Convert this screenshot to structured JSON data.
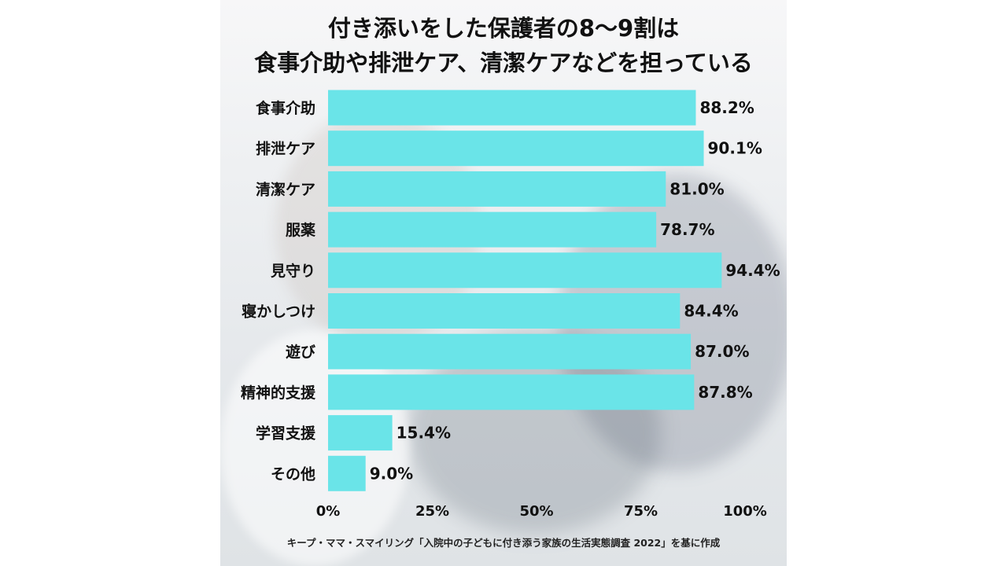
{
  "title": {
    "line1": "付き添いをした保護者の8〜9割は",
    "line2": "食事介助や排泄ケア、清潔ケアなどを担っている"
  },
  "source": "キープ・ママ・スマイリング「入院中の子どもに付き添う家族の生活実態調査 2022」を基に作成",
  "colors": {
    "bar": "#6ae4e8",
    "text": "#111111"
  },
  "chart_data": {
    "type": "bar",
    "orientation": "horizontal",
    "categories": [
      "食事介助",
      "排泄ケア",
      "清潔ケア",
      "服薬",
      "見守り",
      "寝かしつけ",
      "遊び",
      "精神的支援",
      "学習支援",
      "その他"
    ],
    "values": [
      88.2,
      90.1,
      81.0,
      78.7,
      94.4,
      84.4,
      87.0,
      87.8,
      15.4,
      9.0
    ],
    "value_labels": [
      "88.2%",
      "90.1%",
      "81.0%",
      "78.7%",
      "94.4%",
      "84.4%",
      "87.0%",
      "87.8%",
      "15.4%",
      "9.0%"
    ],
    "x_ticks": [
      0,
      25,
      50,
      75,
      100
    ],
    "x_tick_labels": [
      "0%",
      "25%",
      "50%",
      "75%",
      "100%"
    ],
    "xlim": [
      0,
      100
    ],
    "grid": false
  }
}
